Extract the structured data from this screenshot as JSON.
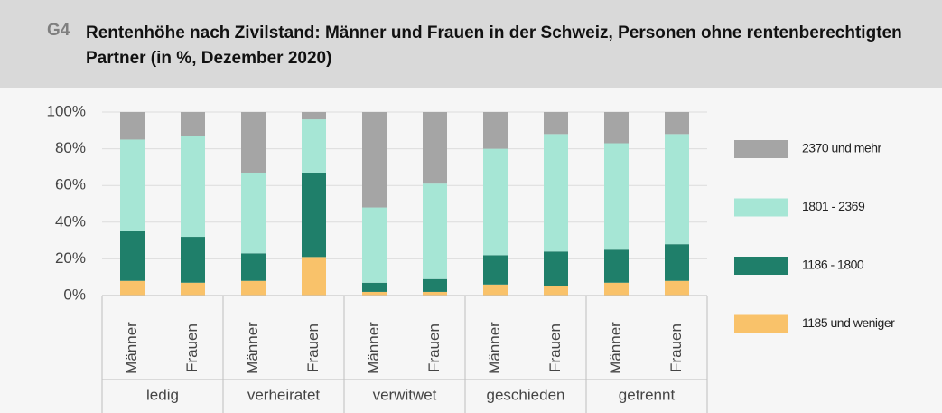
{
  "chart_data": {
    "type": "stacked_bar",
    "number": "G4",
    "title": "Rentenhöhe nach Zivilstand: Männer und Frauen in der Schweiz, Personen ohne rentenberechtigten Partner (in %, Dezember 2020)",
    "groups": [
      "ledig",
      "verheiratet",
      "verwitwet",
      "geschieden",
      "getrennt"
    ],
    "categories": [
      "Männer",
      "Frauen",
      "Männer",
      "Frauen",
      "Männer",
      "Frauen",
      "Männer",
      "Frauen",
      "Männer",
      "Frauen"
    ],
    "series": [
      {
        "name": "1185 und weniger",
        "color": "#f9c26a",
        "values": [
          8,
          7,
          8,
          21,
          2,
          2,
          6,
          5,
          7,
          8
        ]
      },
      {
        "name": "1186 - 1800",
        "color": "#1f7f6a",
        "values": [
          27,
          25,
          15,
          46,
          5,
          7,
          16,
          19,
          18,
          20
        ]
      },
      {
        "name": "1801 - 2369",
        "color": "#a6e6d5",
        "values": [
          50,
          55,
          44,
          29,
          41,
          52,
          58,
          64,
          58,
          60
        ]
      },
      {
        "name": "2370 und mehr",
        "color": "#a5a5a5",
        "values": [
          15,
          13,
          33,
          4,
          52,
          39,
          20,
          12,
          17,
          12
        ]
      }
    ],
    "ylim": [
      0,
      100
    ],
    "yticks": [
      {
        "value": 0,
        "label": "0%"
      },
      {
        "value": 20,
        "label": "20%"
      },
      {
        "value": 40,
        "label": "40%"
      },
      {
        "value": 60,
        "label": "60%"
      },
      {
        "value": 80,
        "label": "80%"
      },
      {
        "value": 100,
        "label": "100%"
      }
    ],
    "grid": true
  }
}
